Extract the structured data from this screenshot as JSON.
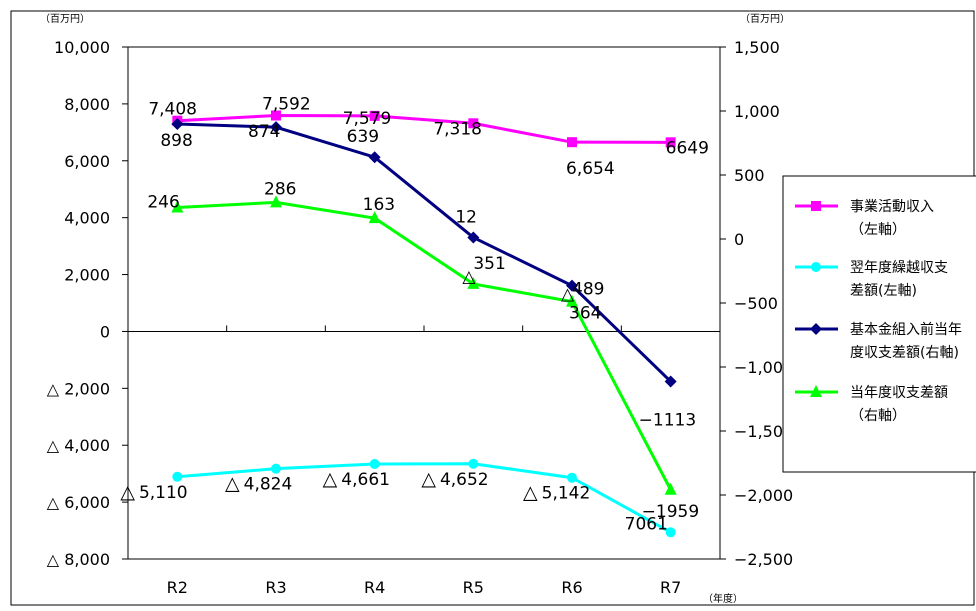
{
  "chart_data": {
    "type": "line",
    "categories": [
      "R2",
      "R3",
      "R4",
      "R5",
      "R6",
      "R7"
    ],
    "left_unit": "（百万円）",
    "right_unit": "（百万円）",
    "x_unit": "（年度）",
    "left_axis": {
      "ylim": [
        -8000,
        10000
      ],
      "ticks": [
        {
          "v": 10000,
          "label": "10,000"
        },
        {
          "v": 8000,
          "label": "8,000"
        },
        {
          "v": 6000,
          "label": "6,000"
        },
        {
          "v": 4000,
          "label": "4,000"
        },
        {
          "v": 2000,
          "label": "2,000"
        },
        {
          "v": 0,
          "label": "0"
        },
        {
          "v": -2000,
          "label": "△ 2,000"
        },
        {
          "v": -4000,
          "label": "△ 4,000"
        },
        {
          "v": -6000,
          "label": "△ 6,000"
        },
        {
          "v": -8000,
          "label": "△ 8,000"
        }
      ]
    },
    "right_axis": {
      "ylim": [
        -2500,
        1500
      ],
      "ticks": [
        {
          "v": 1500,
          "label": "1,500"
        },
        {
          "v": 1000,
          "label": "1,000"
        },
        {
          "v": 500,
          "label": "500"
        },
        {
          "v": 0,
          "label": "0"
        },
        {
          "v": -500,
          "label": "−500"
        },
        {
          "v": -1000,
          "label": "−1,000"
        },
        {
          "v": -1500,
          "label": "−1,500"
        },
        {
          "v": -2000,
          "label": "−2,000"
        },
        {
          "v": -2500,
          "label": "−2,500"
        }
      ]
    },
    "series": [
      {
        "name": "事業活動収入",
        "name_suffix": "（左軸）",
        "axis": "left",
        "color": "#ff00ff",
        "marker": "square",
        "values": [
          7408,
          7592,
          7579,
          7318,
          6654,
          6649
        ],
        "labels": [
          "7,408",
          "7,592",
          "7,579",
          "7,318",
          "6,654",
          "6649"
        ]
      },
      {
        "name": "翌年度繰越収支",
        "name_suffix": "差額(左軸)",
        "axis": "left",
        "color": "#00ffff",
        "marker": "circle",
        "values": [
          -5110,
          -4824,
          -4661,
          -4652,
          -5142,
          -7061
        ],
        "labels": [
          "5,110",
          "4,824",
          "4,661",
          "4,652",
          "5,142",
          "7061"
        ]
      },
      {
        "name": "基本金組入前当年",
        "name_suffix": "度収支差額(右軸)",
        "axis": "right",
        "color": "#000080",
        "marker": "diamond",
        "values": [
          898,
          874,
          639,
          12,
          -364,
          -1113
        ],
        "labels": [
          "898",
          "874",
          "639",
          "12",
          "364",
          "−1113"
        ]
      },
      {
        "name": "当年度収支差額",
        "name_suffix": "（右軸）",
        "axis": "right",
        "color": "#00ff00",
        "marker": "triangle",
        "values": [
          246,
          286,
          163,
          -351,
          -489,
          -1959
        ],
        "labels": [
          "246",
          "286",
          "163",
          "351",
          "489",
          "−1959"
        ]
      }
    ],
    "triangle_mark": "△",
    "grid": false,
    "legend_position": "right"
  }
}
